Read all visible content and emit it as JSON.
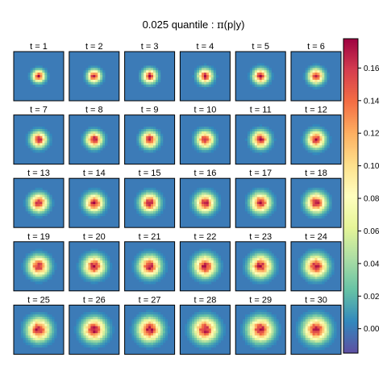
{
  "chart_data": {
    "type": "heatmap",
    "title_prefix": "0.025 quantile : ",
    "title_symbol": "π",
    "title_suffix": "(p|y)",
    "panel_label_prefix": "t = ",
    "panels": [
      1,
      2,
      3,
      4,
      5,
      6,
      7,
      8,
      9,
      10,
      11,
      12,
      13,
      14,
      15,
      16,
      17,
      18,
      19,
      20,
      21,
      22,
      23,
      24,
      25,
      26,
      27,
      28,
      29,
      30
    ],
    "grid_size": 21,
    "blob_spread": [
      1.6,
      1.7,
      1.8,
      1.85,
      1.9,
      1.95,
      2.0,
      2.05,
      2.1,
      2.15,
      2.2,
      2.25,
      2.3,
      2.35,
      2.4,
      2.45,
      2.5,
      2.55,
      2.6,
      2.65,
      2.7,
      2.75,
      2.8,
      2.85,
      2.9,
      2.95,
      3.0,
      3.05,
      3.1,
      3.15
    ],
    "peak_value": 0.17,
    "background_value": 0.0,
    "colorbar": {
      "range": [
        -0.015,
        0.178
      ],
      "ticks": [
        0.0,
        0.02,
        0.04,
        0.06,
        0.08,
        0.1,
        0.12,
        0.14,
        0.16
      ],
      "tick_labels": [
        "0.00",
        "0.02",
        "0.04",
        "0.06",
        "0.08",
        "0.10",
        "0.12",
        "0.14",
        "0.16"
      ],
      "colormap": "Spectral (reversed)",
      "colors": [
        "#5e4fa2",
        "#3288bd",
        "#66c2a5",
        "#abdda4",
        "#e6f598",
        "#ffffbf",
        "#fee08b",
        "#fdae61",
        "#f46d43",
        "#d53e4f",
        "#9e0142"
      ]
    }
  }
}
